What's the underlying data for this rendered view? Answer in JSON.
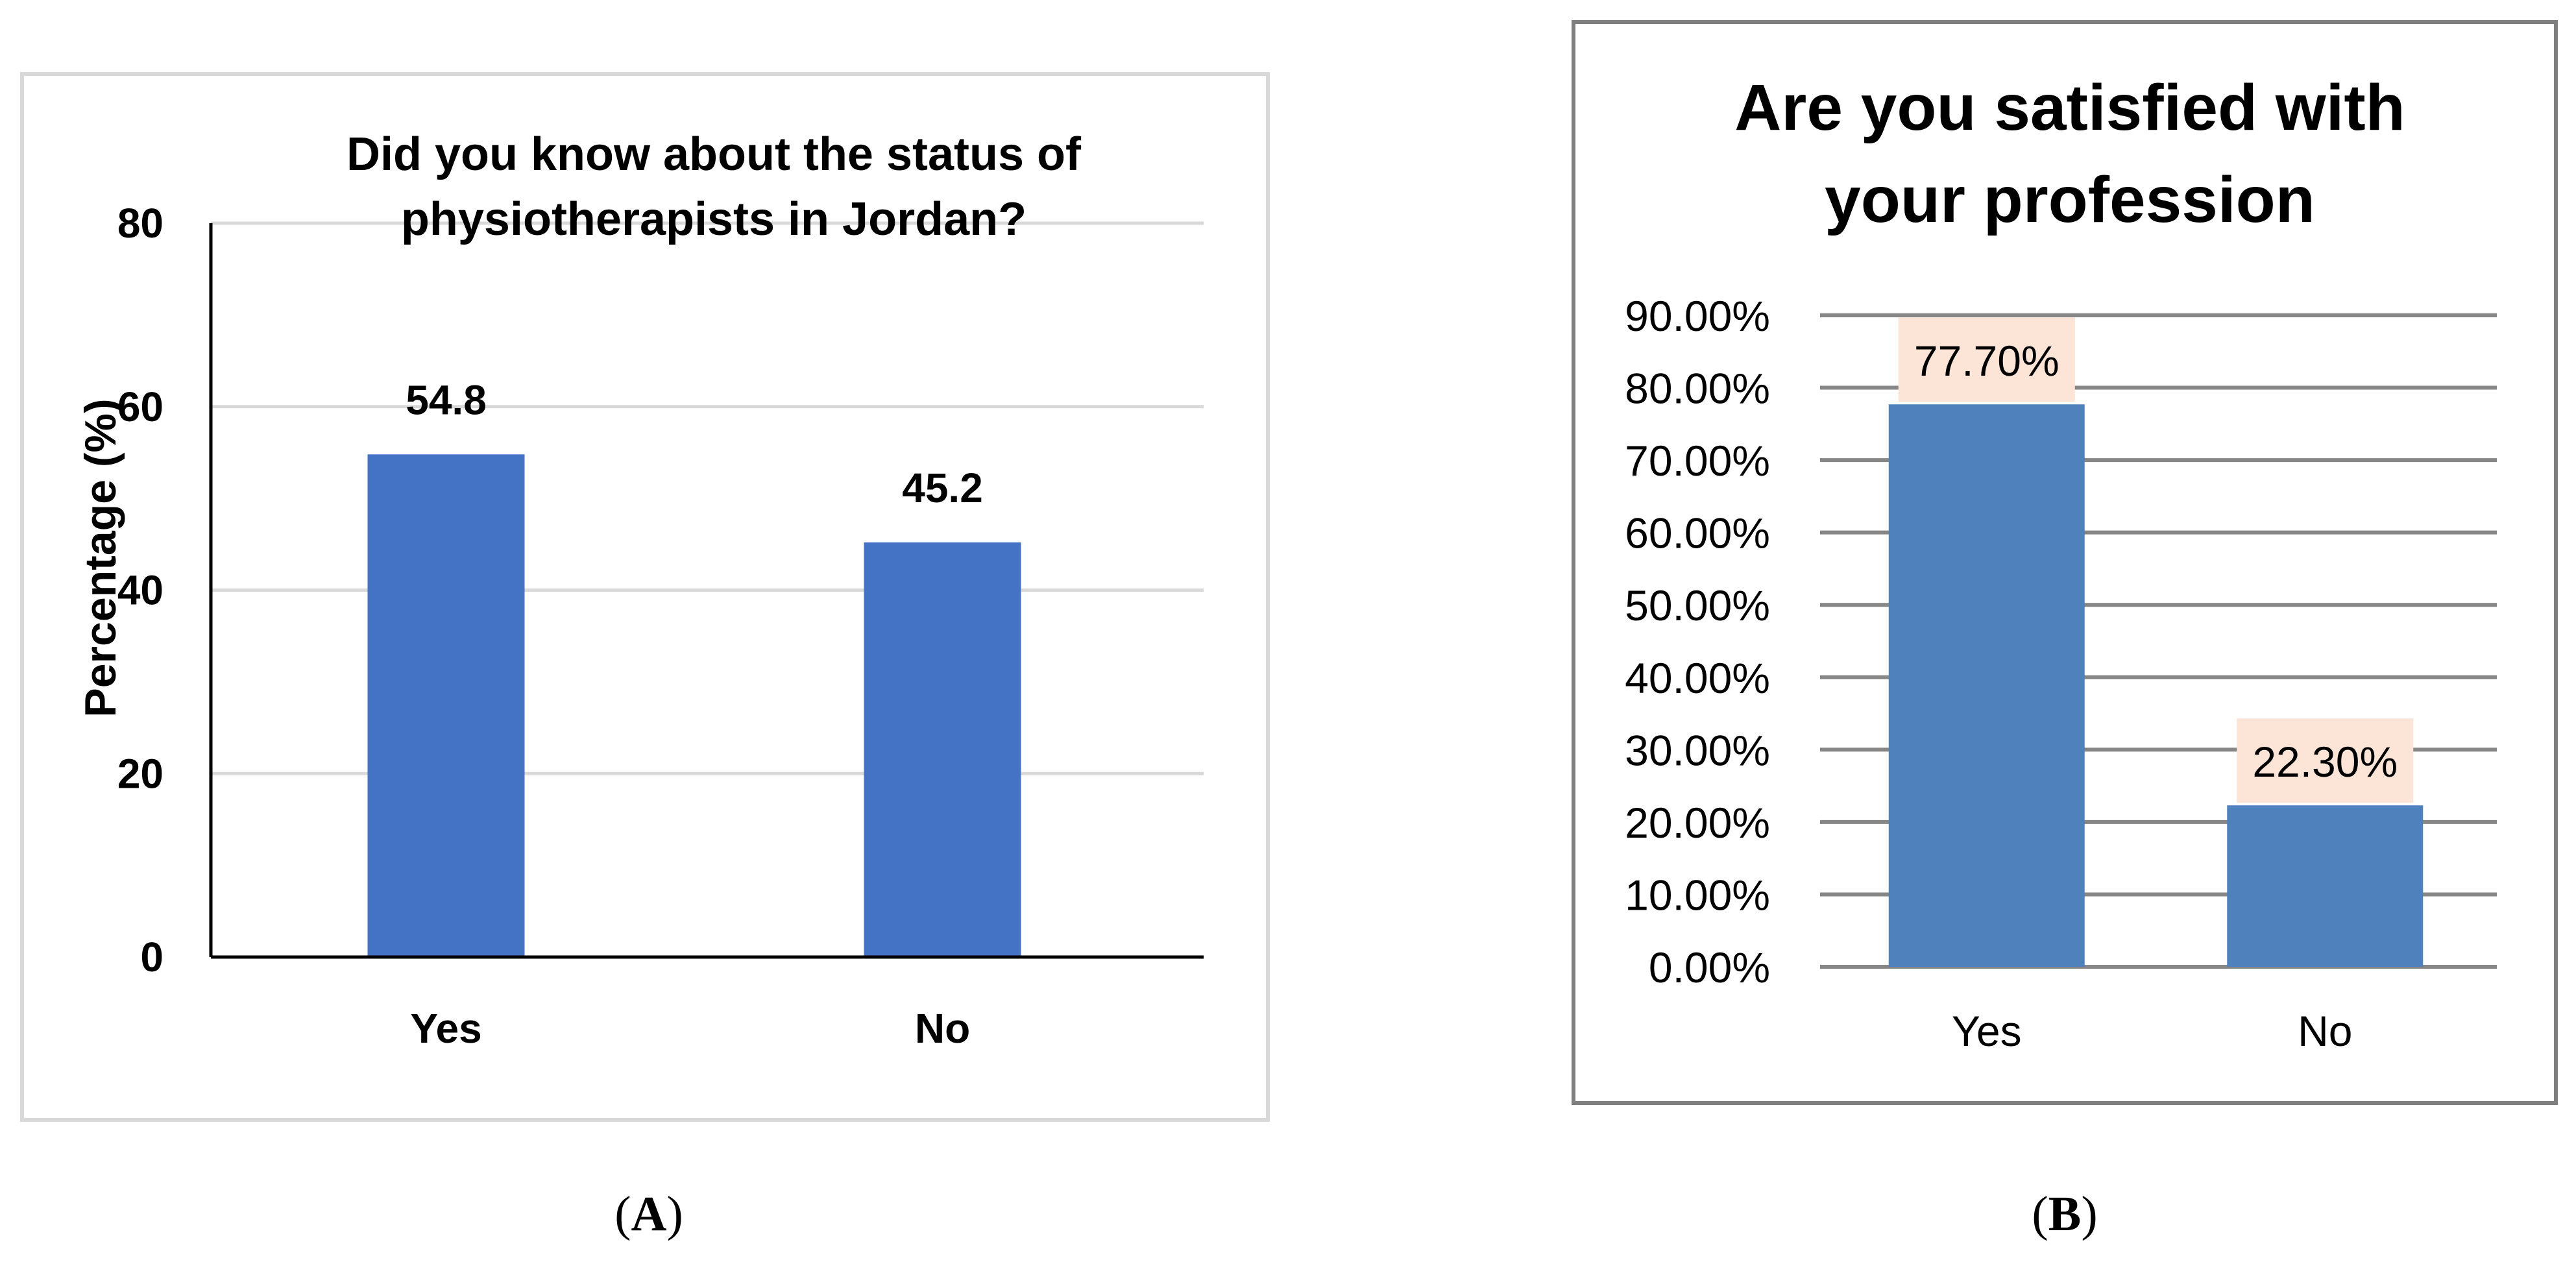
{
  "chart_data": [
    {
      "type": "bar",
      "title_lines": [
        "Did you know about the status of",
        "physiotherapists in Jordan?"
      ],
      "ylabel": "Percentage (%)",
      "xlabel": "",
      "categories": [
        "Yes",
        "No"
      ],
      "values": [
        54.8,
        45.2
      ],
      "data_labels": [
        "54.8",
        "45.2"
      ],
      "ylim": [
        0,
        80
      ],
      "yticks": [
        0,
        20,
        40,
        60,
        80
      ],
      "ytick_labels": [
        "0",
        "20",
        "40",
        "60",
        "80"
      ],
      "grid": true,
      "bar_color": "#4472C4",
      "panel_label": "A"
    },
    {
      "type": "bar",
      "title_lines": [
        "Are you satisfied with",
        "your profession"
      ],
      "ylabel": "",
      "xlabel": "",
      "categories": [
        "Yes",
        "No"
      ],
      "values": [
        77.7,
        22.3
      ],
      "data_labels": [
        "77.70%",
        "22.30%"
      ],
      "ylim": [
        0,
        90
      ],
      "yticks": [
        0,
        10,
        20,
        30,
        40,
        50,
        60,
        70,
        80,
        90
      ],
      "ytick_labels": [
        "0.00%",
        "10.00%",
        "20.00%",
        "30.00%",
        "40.00%",
        "50.00%",
        "60.00%",
        "70.00%",
        "80.00%",
        "90.00%"
      ],
      "grid": true,
      "bar_color": "#4F81BD",
      "label_bg_color": "#FCE4D6",
      "panel_label": "B"
    }
  ]
}
